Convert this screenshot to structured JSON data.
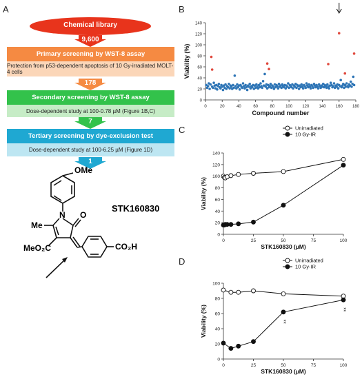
{
  "panels": {
    "a": "A",
    "b": "B",
    "c": "C",
    "d": "D"
  },
  "screening": {
    "library_label": "Chemical library",
    "library_count": "9,600",
    "stages": [
      {
        "title": "Primary screening by WST-8 assay",
        "detail": "Protection from p53-dependent apoptosis of 10 Gy-irradiated MOLT-4 cells",
        "count_out": "178"
      },
      {
        "title": "Secondary screening by WST-8 assay",
        "detail": "Dose-dependent study at 100-0.78 µM (Figure 1B,C)",
        "count_out": "7"
      },
      {
        "title": "Tertiary  screening by dye-exclusion test",
        "detail": "Dose-dependent study at 100-6.25 µM (Figure 1D)",
        "count_out": "1"
      }
    ],
    "colors": {
      "library": "#e8341c",
      "primary": "#f58a42",
      "primary_sub": "#fbd6b8",
      "secondary": "#33c24b",
      "secondary_sub": "#c6ecc6",
      "tertiary": "#1fa8d2",
      "tertiary_sub": "#bde6f2"
    }
  },
  "compound": {
    "name": "STK160830",
    "groups": {
      "ome": "OMe",
      "me": "Me",
      "n": "N",
      "o": "O",
      "ester": "MeO₂C",
      "acid": "CO₂H"
    }
  },
  "chart_data": [
    {
      "id": "B",
      "type": "scatter",
      "xlabel": "Compound number",
      "ylabel": "Viability (%)",
      "xlim": [
        0,
        180
      ],
      "ylim": [
        0,
        140
      ],
      "xticks": [
        0,
        20,
        40,
        60,
        80,
        100,
        120,
        140,
        160,
        180
      ],
      "yticks": [
        0,
        20,
        40,
        60,
        80,
        100,
        120,
        140
      ],
      "grid": false,
      "annotation": "↓ at compound 160",
      "series": [
        {
          "color": "#2e75b6",
          "points": [
            [
              1,
              27
            ],
            [
              2,
              22
            ],
            [
              3,
              25
            ],
            [
              4,
              30
            ],
            [
              5,
              20
            ],
            [
              6,
              28
            ],
            [
              8,
              24
            ],
            [
              9,
              22
            ],
            [
              10,
              31
            ],
            [
              11,
              26
            ],
            [
              12,
              21
            ],
            [
              13,
              27
            ],
            [
              14,
              19
            ],
            [
              15,
              25
            ],
            [
              16,
              29
            ],
            [
              17,
              23
            ],
            [
              18,
              21
            ],
            [
              19,
              27
            ],
            [
              20,
              24
            ],
            [
              21,
              18
            ],
            [
              22,
              26
            ],
            [
              23,
              22
            ],
            [
              24,
              28
            ],
            [
              25,
              20
            ],
            [
              26,
              25
            ],
            [
              27,
              23
            ],
            [
              28,
              29
            ],
            [
              29,
              21
            ],
            [
              30,
              26
            ],
            [
              31,
              24
            ],
            [
              32,
              20
            ],
            [
              33,
              27
            ],
            [
              34,
              22
            ],
            [
              35,
              44
            ],
            [
              36,
              25
            ],
            [
              37,
              21
            ],
            [
              38,
              28
            ],
            [
              39,
              23
            ],
            [
              40,
              26
            ],
            [
              41,
              19
            ],
            [
              42,
              27
            ],
            [
              43,
              24
            ],
            [
              44,
              22
            ],
            [
              45,
              30
            ],
            [
              46,
              25
            ],
            [
              47,
              21
            ],
            [
              48,
              27
            ],
            [
              49,
              23
            ],
            [
              50,
              18
            ],
            [
              51,
              26
            ],
            [
              52,
              24
            ],
            [
              53,
              29
            ],
            [
              54,
              21
            ],
            [
              55,
              25
            ],
            [
              56,
              23
            ],
            [
              57,
              27
            ],
            [
              58,
              20
            ],
            [
              59,
              26
            ],
            [
              60,
              22
            ],
            [
              61,
              28
            ],
            [
              62,
              24
            ],
            [
              63,
              21
            ],
            [
              64,
              27
            ],
            [
              65,
              23
            ],
            [
              66,
              30
            ],
            [
              67,
              25
            ],
            [
              68,
              22
            ],
            [
              69,
              34
            ],
            [
              70,
              26
            ],
            [
              71,
              47
            ],
            [
              72,
              24
            ],
            [
              73,
              28
            ],
            [
              74,
              21
            ],
            [
              75,
              27
            ],
            [
              76,
              23
            ],
            [
              77,
              25
            ],
            [
              78,
              29
            ],
            [
              79,
              22
            ],
            [
              80,
              26
            ],
            [
              81,
              24
            ],
            [
              82,
              20
            ],
            [
              83,
              28
            ],
            [
              84,
              23
            ],
            [
              85,
              27
            ],
            [
              86,
              25
            ],
            [
              87,
              21
            ],
            [
              88,
              29
            ],
            [
              89,
              24
            ],
            [
              90,
              26
            ],
            [
              91,
              22
            ],
            [
              92,
              28
            ],
            [
              93,
              25
            ],
            [
              94,
              23
            ],
            [
              95,
              27
            ],
            [
              96,
              21
            ],
            [
              97,
              26
            ],
            [
              98,
              24
            ],
            [
              99,
              30
            ],
            [
              100,
              22
            ],
            [
              101,
              27
            ],
            [
              102,
              25
            ],
            [
              103,
              23
            ],
            [
              104,
              28
            ],
            [
              105,
              21
            ],
            [
              106,
              26
            ],
            [
              107,
              24
            ],
            [
              108,
              29
            ],
            [
              109,
              22
            ],
            [
              110,
              27
            ],
            [
              111,
              25
            ],
            [
              112,
              20
            ],
            [
              113,
              26
            ],
            [
              114,
              23
            ],
            [
              115,
              28
            ],
            [
              116,
              24
            ],
            [
              117,
              21
            ],
            [
              118,
              27
            ],
            [
              119,
              25
            ],
            [
              120,
              22
            ],
            [
              121,
              30
            ],
            [
              122,
              26
            ],
            [
              123,
              23
            ],
            [
              124,
              28
            ],
            [
              125,
              24
            ],
            [
              126,
              21
            ],
            [
              127,
              27
            ],
            [
              128,
              25
            ],
            [
              129,
              22
            ],
            [
              130,
              29
            ],
            [
              131,
              26
            ],
            [
              132,
              23
            ],
            [
              133,
              27
            ],
            [
              134,
              24
            ],
            [
              135,
              21
            ],
            [
              136,
              28
            ],
            [
              137,
              25
            ],
            [
              138,
              22
            ],
            [
              139,
              26
            ],
            [
              140,
              24
            ],
            [
              141,
              29
            ],
            [
              142,
              23
            ],
            [
              143,
              27
            ],
            [
              144,
              25
            ],
            [
              145,
              22
            ],
            [
              146,
              28
            ],
            [
              147,
              24
            ],
            [
              148,
              21
            ],
            [
              149,
              26
            ],
            [
              150,
              31
            ],
            [
              151,
              27
            ],
            [
              152,
              23
            ],
            [
              153,
              25
            ],
            [
              154,
              30
            ],
            [
              155,
              22
            ],
            [
              156,
              26
            ],
            [
              157,
              24
            ],
            [
              158,
              28
            ],
            [
              159,
              21
            ],
            [
              160,
              27
            ],
            [
              161,
              25
            ],
            [
              162,
              36
            ],
            [
              163,
              23
            ],
            [
              164,
              26
            ],
            [
              165,
              29
            ],
            [
              166,
              22
            ],
            [
              167,
              27
            ],
            [
              168,
              24
            ],
            [
              169,
              30
            ],
            [
              170,
              25
            ],
            [
              171,
              23
            ],
            [
              172,
              28
            ],
            [
              173,
              26
            ],
            [
              174,
              33
            ],
            [
              175,
              24
            ],
            [
              176,
              29
            ],
            [
              177,
              42
            ],
            [
              178,
              27
            ]
          ]
        },
        {
          "color": "#e0483c",
          "points": [
            [
              7,
              78
            ],
            [
              8,
              55
            ],
            [
              74,
              66
            ],
            [
              76,
              56
            ],
            [
              147,
              65
            ],
            [
              160,
              121
            ],
            [
              167,
              48
            ],
            [
              178,
              84
            ]
          ]
        }
      ]
    },
    {
      "id": "C",
      "type": "line",
      "xlabel": "STK160830 (µM)",
      "ylabel": "Viability (%)",
      "xlim": [
        0,
        100
      ],
      "ylim": [
        0,
        140
      ],
      "xticks": [
        0,
        25,
        50,
        75,
        100
      ],
      "yticks": [
        0,
        20,
        40,
        60,
        80,
        100,
        120,
        140
      ],
      "legend_position": "top",
      "series": [
        {
          "name": "Unirradiated",
          "marker": "open-circle",
          "x": [
            0,
            0.78,
            1.56,
            3.13,
            6.25,
            12.5,
            25,
            50,
            100
          ],
          "values": [
            100,
            98,
            97,
            99,
            101,
            103,
            105,
            108,
            129
          ]
        },
        {
          "name": "10 Gy-IR",
          "marker": "filled-circle",
          "x": [
            0,
            0.78,
            1.56,
            3.13,
            6.25,
            12.5,
            25,
            50,
            100
          ],
          "values": [
            16,
            16,
            17,
            17,
            17,
            18,
            21,
            50,
            119
          ]
        }
      ]
    },
    {
      "id": "D",
      "type": "line",
      "xlabel": "STK160830 (µM)",
      "ylabel": "Viability (%)",
      "xlim": [
        0,
        100
      ],
      "ylim": [
        0,
        100
      ],
      "xticks": [
        0,
        25,
        50,
        75,
        100
      ],
      "yticks": [
        0,
        20,
        40,
        60,
        80,
        100
      ],
      "legend_position": "top",
      "significance": [
        {
          "x": 50,
          "label": "**"
        },
        {
          "x": 100,
          "label": "**"
        }
      ],
      "series": [
        {
          "name": "Unirradiated",
          "marker": "open-circle",
          "x": [
            0,
            6.25,
            12.5,
            25,
            50,
            100
          ],
          "values": [
            91,
            88,
            88,
            90,
            86,
            83
          ]
        },
        {
          "name": "10 Gy-IR",
          "marker": "filled-circle",
          "x": [
            0,
            6.25,
            12.5,
            25,
            50,
            100
          ],
          "values": [
            21,
            14,
            17,
            23,
            62,
            78
          ]
        }
      ]
    }
  ]
}
